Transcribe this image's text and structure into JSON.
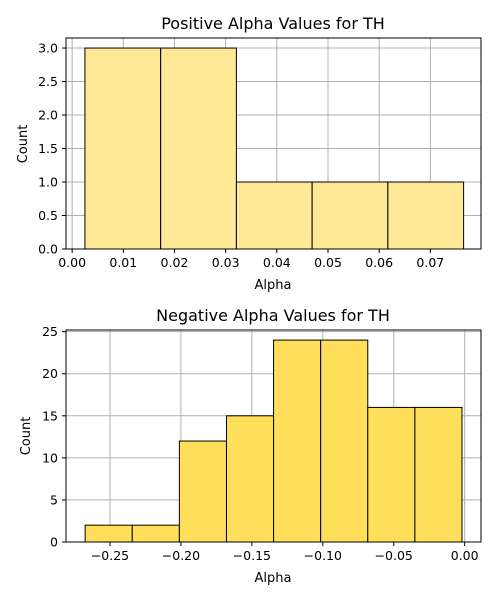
{
  "chart_data": [
    {
      "type": "bar",
      "title": "Positive Alpha Values for TH",
      "xlabel": "Alpha",
      "ylabel": "Count",
      "bins": [
        {
          "x0": 0.0025,
          "x1": 0.0173,
          "count": 3
        },
        {
          "x0": 0.0173,
          "x1": 0.0321,
          "count": 3
        },
        {
          "x0": 0.0321,
          "x1": 0.0469,
          "count": 1
        },
        {
          "x0": 0.0469,
          "x1": 0.0617,
          "count": 1
        },
        {
          "x0": 0.0617,
          "x1": 0.0765,
          "count": 1
        }
      ],
      "xlim": [
        -0.0012,
        0.0799
      ],
      "ylim": [
        0,
        3.15
      ],
      "xticks": [
        0.0,
        0.01,
        0.02,
        0.03,
        0.04,
        0.05,
        0.06,
        0.07
      ],
      "xtick_labels": [
        "0.00",
        "0.01",
        "0.02",
        "0.03",
        "0.04",
        "0.05",
        "0.06",
        "0.07"
      ],
      "yticks": [
        0.0,
        0.5,
        1.0,
        1.5,
        2.0,
        2.5,
        3.0
      ],
      "ytick_labels": [
        "0.0",
        "0.5",
        "1.0",
        "1.5",
        "2.0",
        "2.5",
        "3.0"
      ],
      "grid": true,
      "bar_color": "#ffe896",
      "bar_alpha_color": "#ffe896",
      "edge_color": "#000000"
    },
    {
      "type": "bar",
      "title": "Negative Alpha Values for TH",
      "xlabel": "Alpha",
      "ylabel": "Count",
      "bins": [
        {
          "x0": -0.2675,
          "x1": -0.2343,
          "count": 2
        },
        {
          "x0": -0.2343,
          "x1": -0.2011,
          "count": 2
        },
        {
          "x0": -0.2011,
          "x1": -0.1679,
          "count": 12
        },
        {
          "x0": -0.1679,
          "x1": -0.1347,
          "count": 15
        },
        {
          "x0": -0.1347,
          "x1": -0.1015,
          "count": 24
        },
        {
          "x0": -0.1015,
          "x1": -0.0683,
          "count": 24
        },
        {
          "x0": -0.0683,
          "x1": -0.0351,
          "count": 16
        },
        {
          "x0": -0.0351,
          "x1": -0.0019,
          "count": 16
        }
      ],
      "xlim": [
        -0.281,
        0.0115
      ],
      "ylim": [
        0,
        25.2
      ],
      "xticks": [
        -0.25,
        -0.2,
        -0.15,
        -0.1,
        -0.05,
        0.0
      ],
      "xtick_labels": [
        "−0.25",
        "−0.20",
        "−0.15",
        "−0.10",
        "−0.05",
        "0.00"
      ],
      "yticks": [
        0,
        5,
        10,
        15,
        20,
        25
      ],
      "ytick_labels": [
        "0",
        "5",
        "10",
        "15",
        "20",
        "25"
      ],
      "grid": true,
      "bar_color": "#ffdf5a",
      "edge_color": "#000000"
    }
  ],
  "colors": {
    "grid": "#b0b0b0",
    "axes": "#000000"
  }
}
